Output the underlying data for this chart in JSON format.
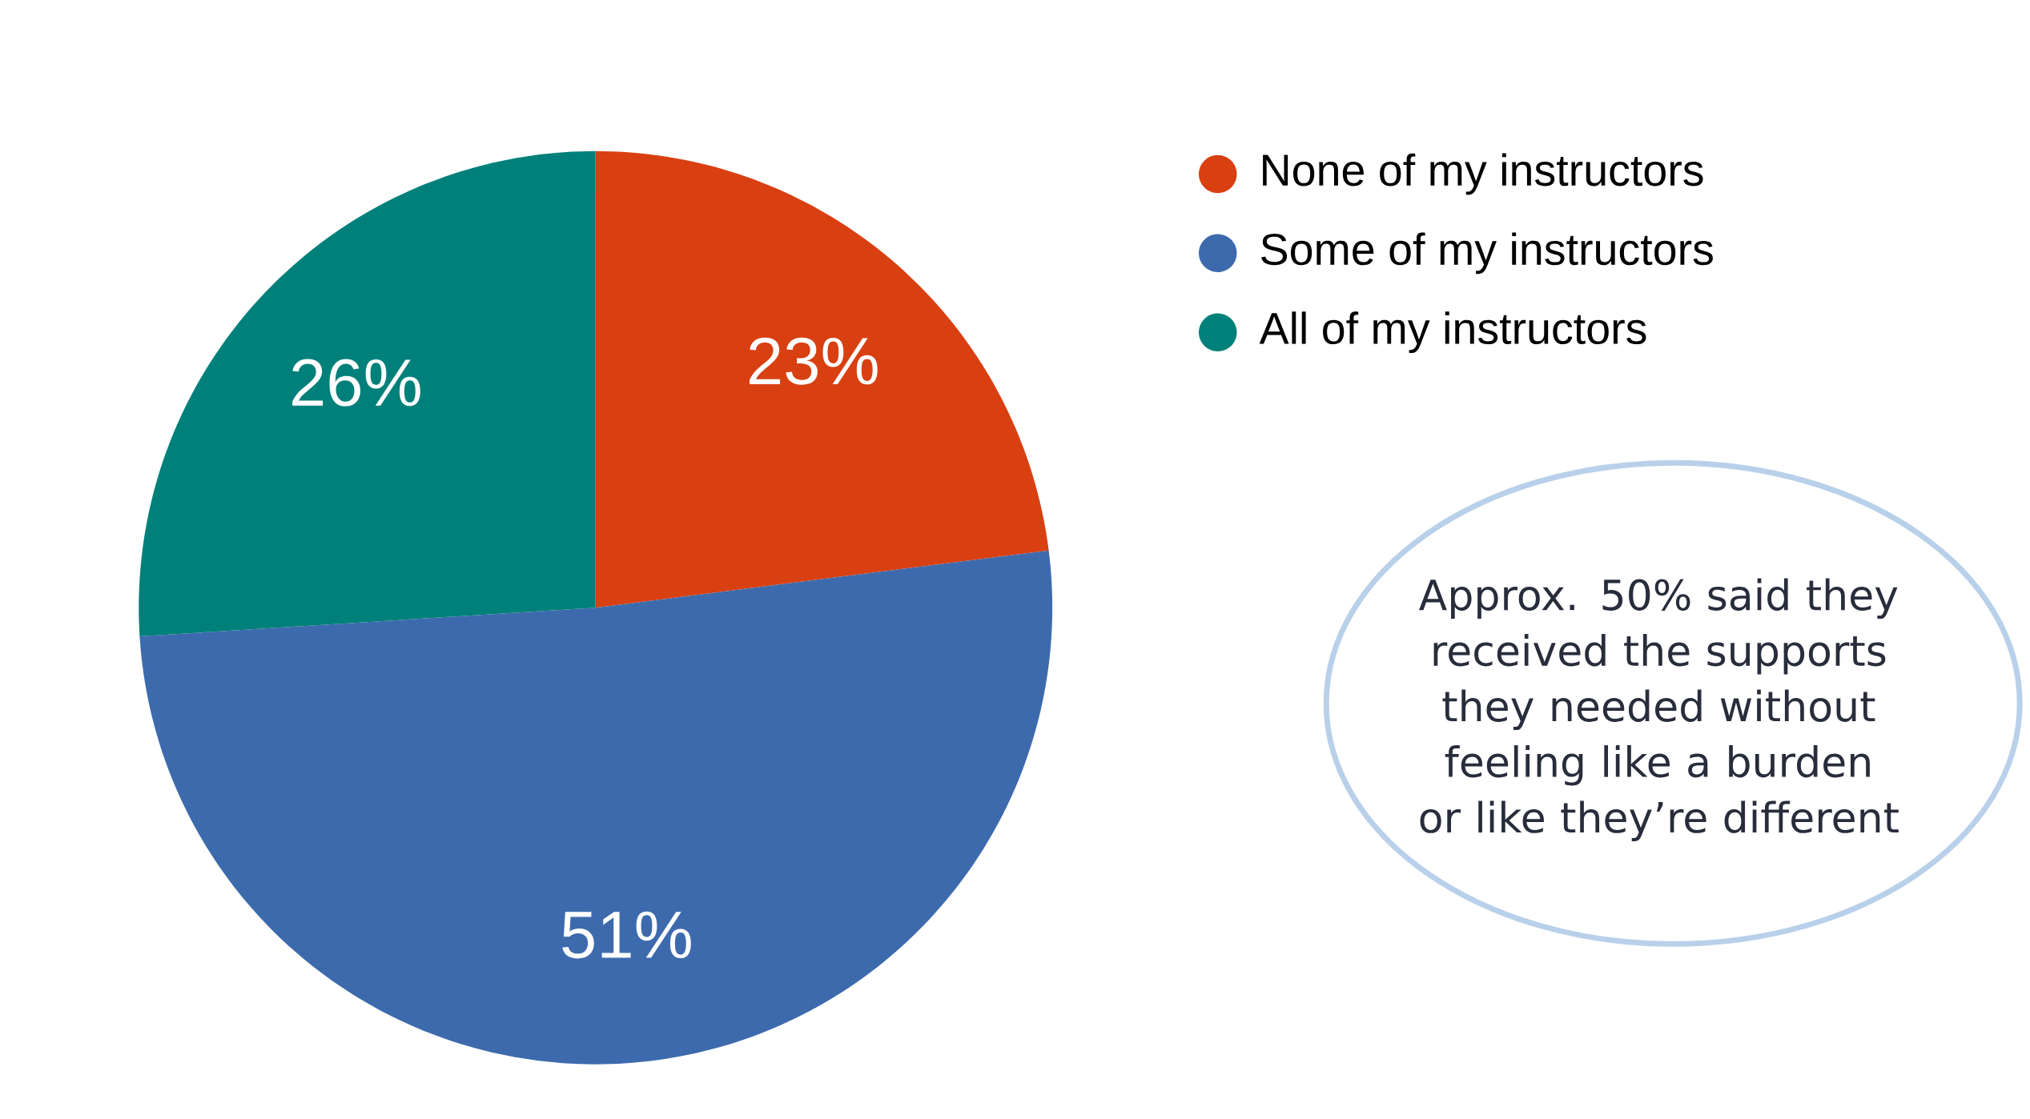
{
  "chart_data": {
    "type": "pie",
    "categories": [
      "None of my instructors",
      "Some of my instructors",
      "All of my instructors"
    ],
    "values": [
      23,
      51,
      26
    ],
    "colors": [
      "#d84012",
      "#3d6aad",
      "#00807a"
    ],
    "value_labels": [
      "23%",
      "51%",
      "26%"
    ],
    "legend": "top right",
    "annotations": [
      "Approx. 50% said they received the supports they needed without feeling like a burden or like they’re different"
    ]
  }
}
